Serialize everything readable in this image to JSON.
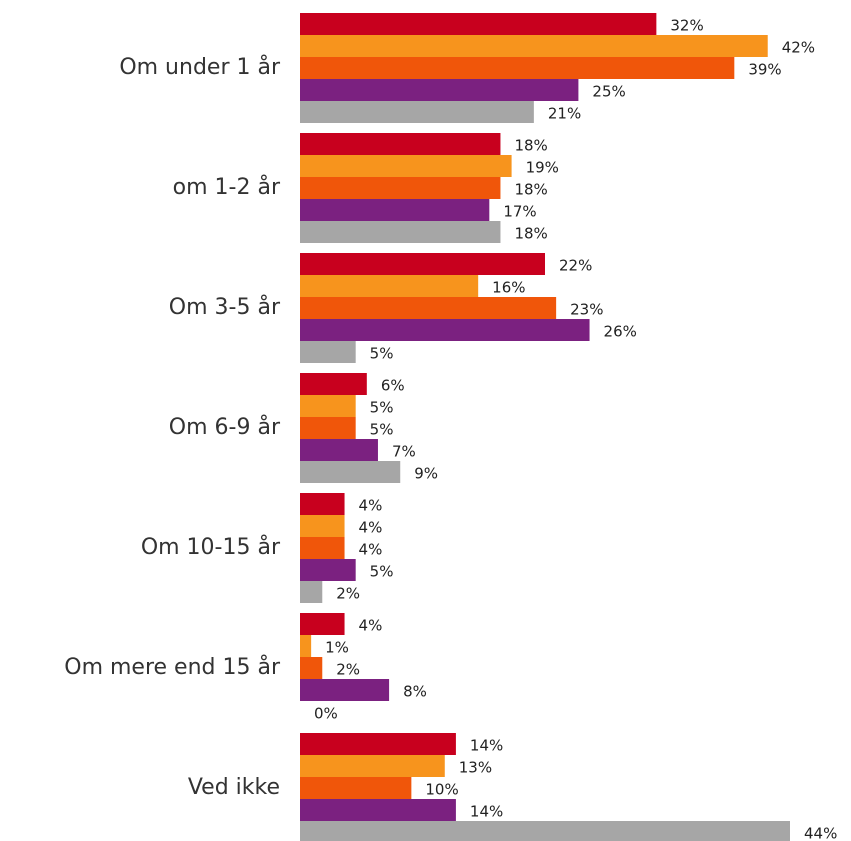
{
  "chart_data": {
    "type": "bar",
    "orientation": "horizontal",
    "categories": [
      "Om under 1 år",
      "om 1-2 år",
      "Om 3-5 år",
      "Om 6-9 år",
      "Om 10-15 år",
      "Om mere end 15 år",
      "Ved ikke"
    ],
    "series": [
      {
        "color": "#c8001e",
        "values": [
          32,
          18,
          22,
          6,
          4,
          4,
          14
        ],
        "value_labels": [
          "32%",
          "18%",
          "22%",
          "6%",
          "4%",
          "4%",
          "14%"
        ]
      },
      {
        "color": "#f7941d",
        "values": [
          42,
          19,
          16,
          5,
          4,
          1,
          13
        ],
        "value_labels": [
          "42%",
          "19%",
          "16%",
          "5%",
          "4%",
          "1%",
          "13%"
        ]
      },
      {
        "color": "#f0560a",
        "values": [
          39,
          18,
          23,
          5,
          4,
          2,
          10
        ],
        "value_labels": [
          "39%",
          "18%",
          "23%",
          "5%",
          "4%",
          "2%",
          "10%"
        ]
      },
      {
        "color": "#7b2180",
        "values": [
          25,
          17,
          26,
          7,
          5,
          8,
          14
        ],
        "value_labels": [
          "25%",
          "17%",
          "26%",
          "7%",
          "5%",
          "8%",
          "14%"
        ]
      },
      {
        "color": "#a6a6a6",
        "values": [
          21,
          18,
          5,
          9,
          2,
          0,
          44
        ],
        "value_labels": [
          "21%",
          "18%",
          "5%",
          "9%",
          "2%",
          "0%",
          "44%"
        ]
      }
    ]
  }
}
